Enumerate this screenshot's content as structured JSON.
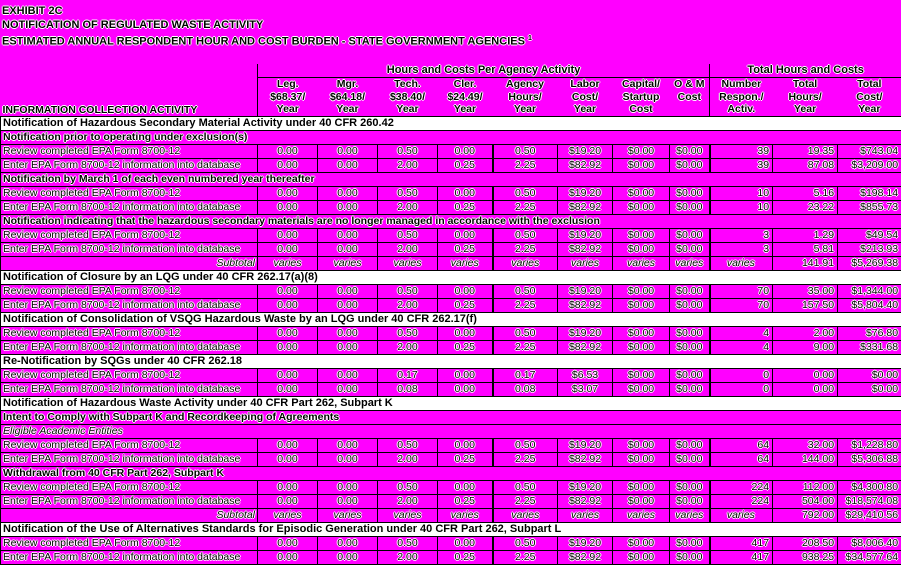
{
  "colors": {
    "page_bg": "#ff00ff",
    "section_bg": "#ffffff",
    "line": "#000000",
    "text": "#000000"
  },
  "title": {
    "line1": "EXHIBIT 2C",
    "line2": "NOTIFICATION OF REGULATED WASTE ACTIVITY",
    "line3": "ESTIMATED ANNUAL RESPONDENT HOUR AND COST BURDEN - STATE GOVERNMENT AGENCIES",
    "footnote": "1"
  },
  "table": {
    "info_header": "INFORMATION COLLECTION ACTIVITY",
    "groups": [
      {
        "label": "Hours and Costs Per Agency Activity",
        "span": 8
      },
      {
        "label": "Total Hours and Costs",
        "span": 3
      }
    ],
    "columns": [
      [
        "Leg.",
        "$68.37/",
        "Year"
      ],
      [
        "Mgr.",
        "$64.18/",
        "Year"
      ],
      [
        "Tech.",
        "$38.40/",
        "Year"
      ],
      [
        "Cler.",
        "$24.49/",
        "Year"
      ],
      [
        "Agency",
        "Hours/",
        "Year"
      ],
      [
        "Labor",
        "Cost/",
        "Year"
      ],
      [
        "Capital/",
        "Startup",
        "Cost"
      ],
      [
        "O & M",
        "Cost",
        ""
      ],
      [
        "Number",
        "Respon./",
        "Activ."
      ],
      [
        "Total",
        "Hours/",
        "Year"
      ],
      [
        "Total",
        "Cost/",
        "Year"
      ]
    ],
    "rows": [
      {
        "type": "section",
        "label": "Notification of Hazardous Secondary Material Activity under 40 CFR 260.42"
      },
      {
        "type": "sub",
        "label": "Notification prior to operating under exclusion(s)"
      },
      {
        "type": "data",
        "label": "Review completed EPA Form 8700-12",
        "values": [
          "0.00",
          "0.00",
          "0.50",
          "0.00",
          "0.50",
          "$19.20",
          "$0.00",
          "$0.00",
          "39",
          "19.35",
          "$743.04"
        ]
      },
      {
        "type": "data",
        "label": "Enter EPA Form 8700-12 information into database",
        "values": [
          "0.00",
          "0.00",
          "2.00",
          "0.25",
          "2.25",
          "$82.92",
          "$0.00",
          "$0.00",
          "39",
          "87.08",
          "$3,209.00"
        ]
      },
      {
        "type": "sub",
        "label": "Notification by March 1 of each even numbered year thereafter"
      },
      {
        "type": "data",
        "label": "Review completed EPA Form 8700-12",
        "values": [
          "0.00",
          "0.00",
          "0.50",
          "0.00",
          "0.50",
          "$19.20",
          "$0.00",
          "$0.00",
          "10",
          "5.16",
          "$198.14"
        ]
      },
      {
        "type": "data",
        "label": "Enter EPA Form 8700-12 information into database",
        "values": [
          "0.00",
          "0.00",
          "2.00",
          "0.25",
          "2.25",
          "$82.92",
          "$0.00",
          "$0.00",
          "10",
          "23.22",
          "$855.73"
        ]
      },
      {
        "type": "sub",
        "label": "Notification indicating that the hazardous secondary materials are no longer managed in accordance with the exclusion"
      },
      {
        "type": "data",
        "label": "Review completed EPA Form 8700-12",
        "values": [
          "0.00",
          "0.00",
          "0.50",
          "0.00",
          "0.50",
          "$19.20",
          "$0.00",
          "$0.00",
          "3",
          "1.29",
          "$49.54"
        ]
      },
      {
        "type": "data",
        "label": "Enter EPA Form 8700-12 information into database",
        "values": [
          "0.00",
          "0.00",
          "2.00",
          "0.25",
          "2.25",
          "$82.92",
          "$0.00",
          "$0.00",
          "3",
          "5.81",
          "$213.93"
        ]
      },
      {
        "type": "subtotal",
        "label": "Subtotal",
        "values": [
          "varies",
          "varies",
          "varies",
          "varies",
          "varies",
          "varies",
          "varies",
          "varies",
          "varies",
          "141.91",
          "$5,269.38"
        ]
      },
      {
        "type": "section",
        "label": "Notification of Closure by an LQG under 40 CFR 262.17(a)(8)"
      },
      {
        "type": "data",
        "label": "Review completed EPA Form 8700-12",
        "values": [
          "0.00",
          "0.00",
          "0.50",
          "0.00",
          "0.50",
          "$19.20",
          "$0.00",
          "$0.00",
          "70",
          "35.00",
          "$1,344.00"
        ]
      },
      {
        "type": "data",
        "label": "Enter EPA Form 8700-12 information into database",
        "values": [
          "0.00",
          "0.00",
          "2.00",
          "0.25",
          "2.25",
          "$82.92",
          "$0.00",
          "$0.00",
          "70",
          "157.50",
          "$5,804.40"
        ]
      },
      {
        "type": "section",
        "label": "Notification of Consolidation of VSQG Hazardous Waste by an LQG under 40 CFR 262.17(f)"
      },
      {
        "type": "data",
        "label": "Review completed EPA Form 8700-12",
        "values": [
          "0.00",
          "0.00",
          "0.50",
          "0.00",
          "0.50",
          "$19.20",
          "$0.00",
          "$0.00",
          "4",
          "2.00",
          "$76.80"
        ]
      },
      {
        "type": "data",
        "label": "Enter EPA Form 8700-12 information into database",
        "values": [
          "0.00",
          "0.00",
          "2.00",
          "0.25",
          "2.25",
          "$82.92",
          "$0.00",
          "$0.00",
          "4",
          "9.00",
          "$331.68"
        ]
      },
      {
        "type": "section",
        "label": "Re-Notification by SQGs under 40 CFR 262.18"
      },
      {
        "type": "data",
        "label": "Review completed EPA Form 8700-12",
        "values": [
          "0.00",
          "0.00",
          "0.17",
          "0.00",
          "0.17",
          "$6.53",
          "$0.00",
          "$0.00",
          "0",
          "0.00",
          "$0.00"
        ]
      },
      {
        "type": "data",
        "label": "Enter EPA Form 8700-12 information into database",
        "values": [
          "0.00",
          "0.00",
          "0.08",
          "0.00",
          "0.08",
          "$3.07",
          "$0.00",
          "$0.00",
          "0",
          "0.00",
          "$0.00"
        ]
      },
      {
        "type": "section",
        "label": "Notification of Hazardous Waste Activity under 40 CFR Part 262, Subpart K"
      },
      {
        "type": "sub",
        "label": "Intent to Comply with Subpart K and Recordkeeping of Agreements"
      },
      {
        "type": "italic",
        "label": "Eligible Academic Entities"
      },
      {
        "type": "data",
        "label": "Review completed EPA Form 8700-12",
        "values": [
          "0.00",
          "0.00",
          "0.50",
          "0.00",
          "0.50",
          "$19.20",
          "$0.00",
          "$0.00",
          "64",
          "32.00",
          "$1,228.80"
        ]
      },
      {
        "type": "data",
        "label": "Enter EPA Form 8700-12 information into database",
        "values": [
          "0.00",
          "0.00",
          "2.00",
          "0.25",
          "2.25",
          "$82.92",
          "$0.00",
          "$0.00",
          "64",
          "144.00",
          "$5,306.88"
        ]
      },
      {
        "type": "sub",
        "label": "Withdrawal from 40 CFR Part 262, Subpart K"
      },
      {
        "type": "data",
        "label": "Review completed EPA Form 8700-12",
        "values": [
          "0.00",
          "0.00",
          "0.50",
          "0.00",
          "0.50",
          "$19.20",
          "$0.00",
          "$0.00",
          "224",
          "112.00",
          "$4,300.80"
        ]
      },
      {
        "type": "data",
        "label": "Enter EPA Form 8700-12 information into database",
        "values": [
          "0.00",
          "0.00",
          "2.00",
          "0.25",
          "2.25",
          "$82.92",
          "$0.00",
          "$0.00",
          "224",
          "504.00",
          "$18,574.08"
        ]
      },
      {
        "type": "subtotal",
        "label": "Subtotal",
        "values": [
          "varies",
          "varies",
          "varies",
          "varies",
          "varies",
          "varies",
          "varies",
          "varies",
          "varies",
          "792.00",
          "$29,410.56"
        ]
      },
      {
        "type": "section",
        "label": "Notification of the Use of Alternatives Standards for Episodic Generation under 40 CFR Part 262, Subpart L"
      },
      {
        "type": "data",
        "label": "Review completed EPA Form 8700-12",
        "values": [
          "0.00",
          "0.00",
          "0.50",
          "0.00",
          "0.50",
          "$19.20",
          "$0.00",
          "$0.00",
          "417",
          "208.50",
          "$8,006.40"
        ]
      },
      {
        "type": "data",
        "label": "Enter EPA Form 8700-12 information into database",
        "values": [
          "0.00",
          "0.00",
          "2.00",
          "0.25",
          "2.25",
          "$82.92",
          "$0.00",
          "$0.00",
          "417",
          "938.25",
          "$34,577.64"
        ]
      }
    ]
  }
}
